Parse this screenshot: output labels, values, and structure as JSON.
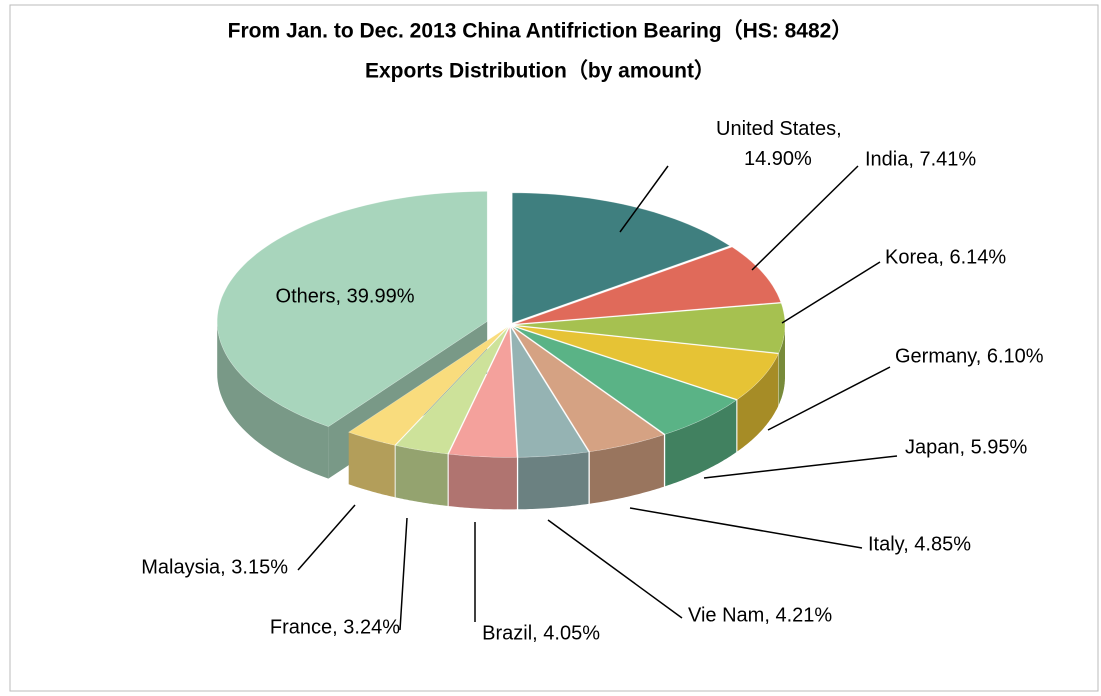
{
  "chart_data": {
    "type": "pie",
    "title": [
      "From Jan. to Dec. 2013 China Antifriction Bearing（HS: 8482）",
      "Exports Distribution（by amount）"
    ],
    "values": [
      14.9,
      7.41,
      6.14,
      6.1,
      5.95,
      4.85,
      4.21,
      4.05,
      3.24,
      3.15,
      39.99
    ],
    "value_labels": [
      "United States, 14.90%",
      "India, 7.41%",
      "Korea, 6.14%",
      "Germany, 6.10%",
      "Japan, 5.95%",
      "Italy, 4.85%",
      "Vie Nam, 4.21%",
      "Brazil, 4.05%",
      "France, 3.24%",
      "Malaysia, 3.15%",
      "Others, 39.99%"
    ],
    "colors": [
      "#3f7f7f",
      "#e06a5a",
      "#a6c150",
      "#e6c335",
      "#5ab386",
      "#d5a283",
      "#95b3b3",
      "#f4a19c",
      "#cde29a",
      "#f9dc7d",
      "#a8d5bc"
    ],
    "three_d": true
  }
}
